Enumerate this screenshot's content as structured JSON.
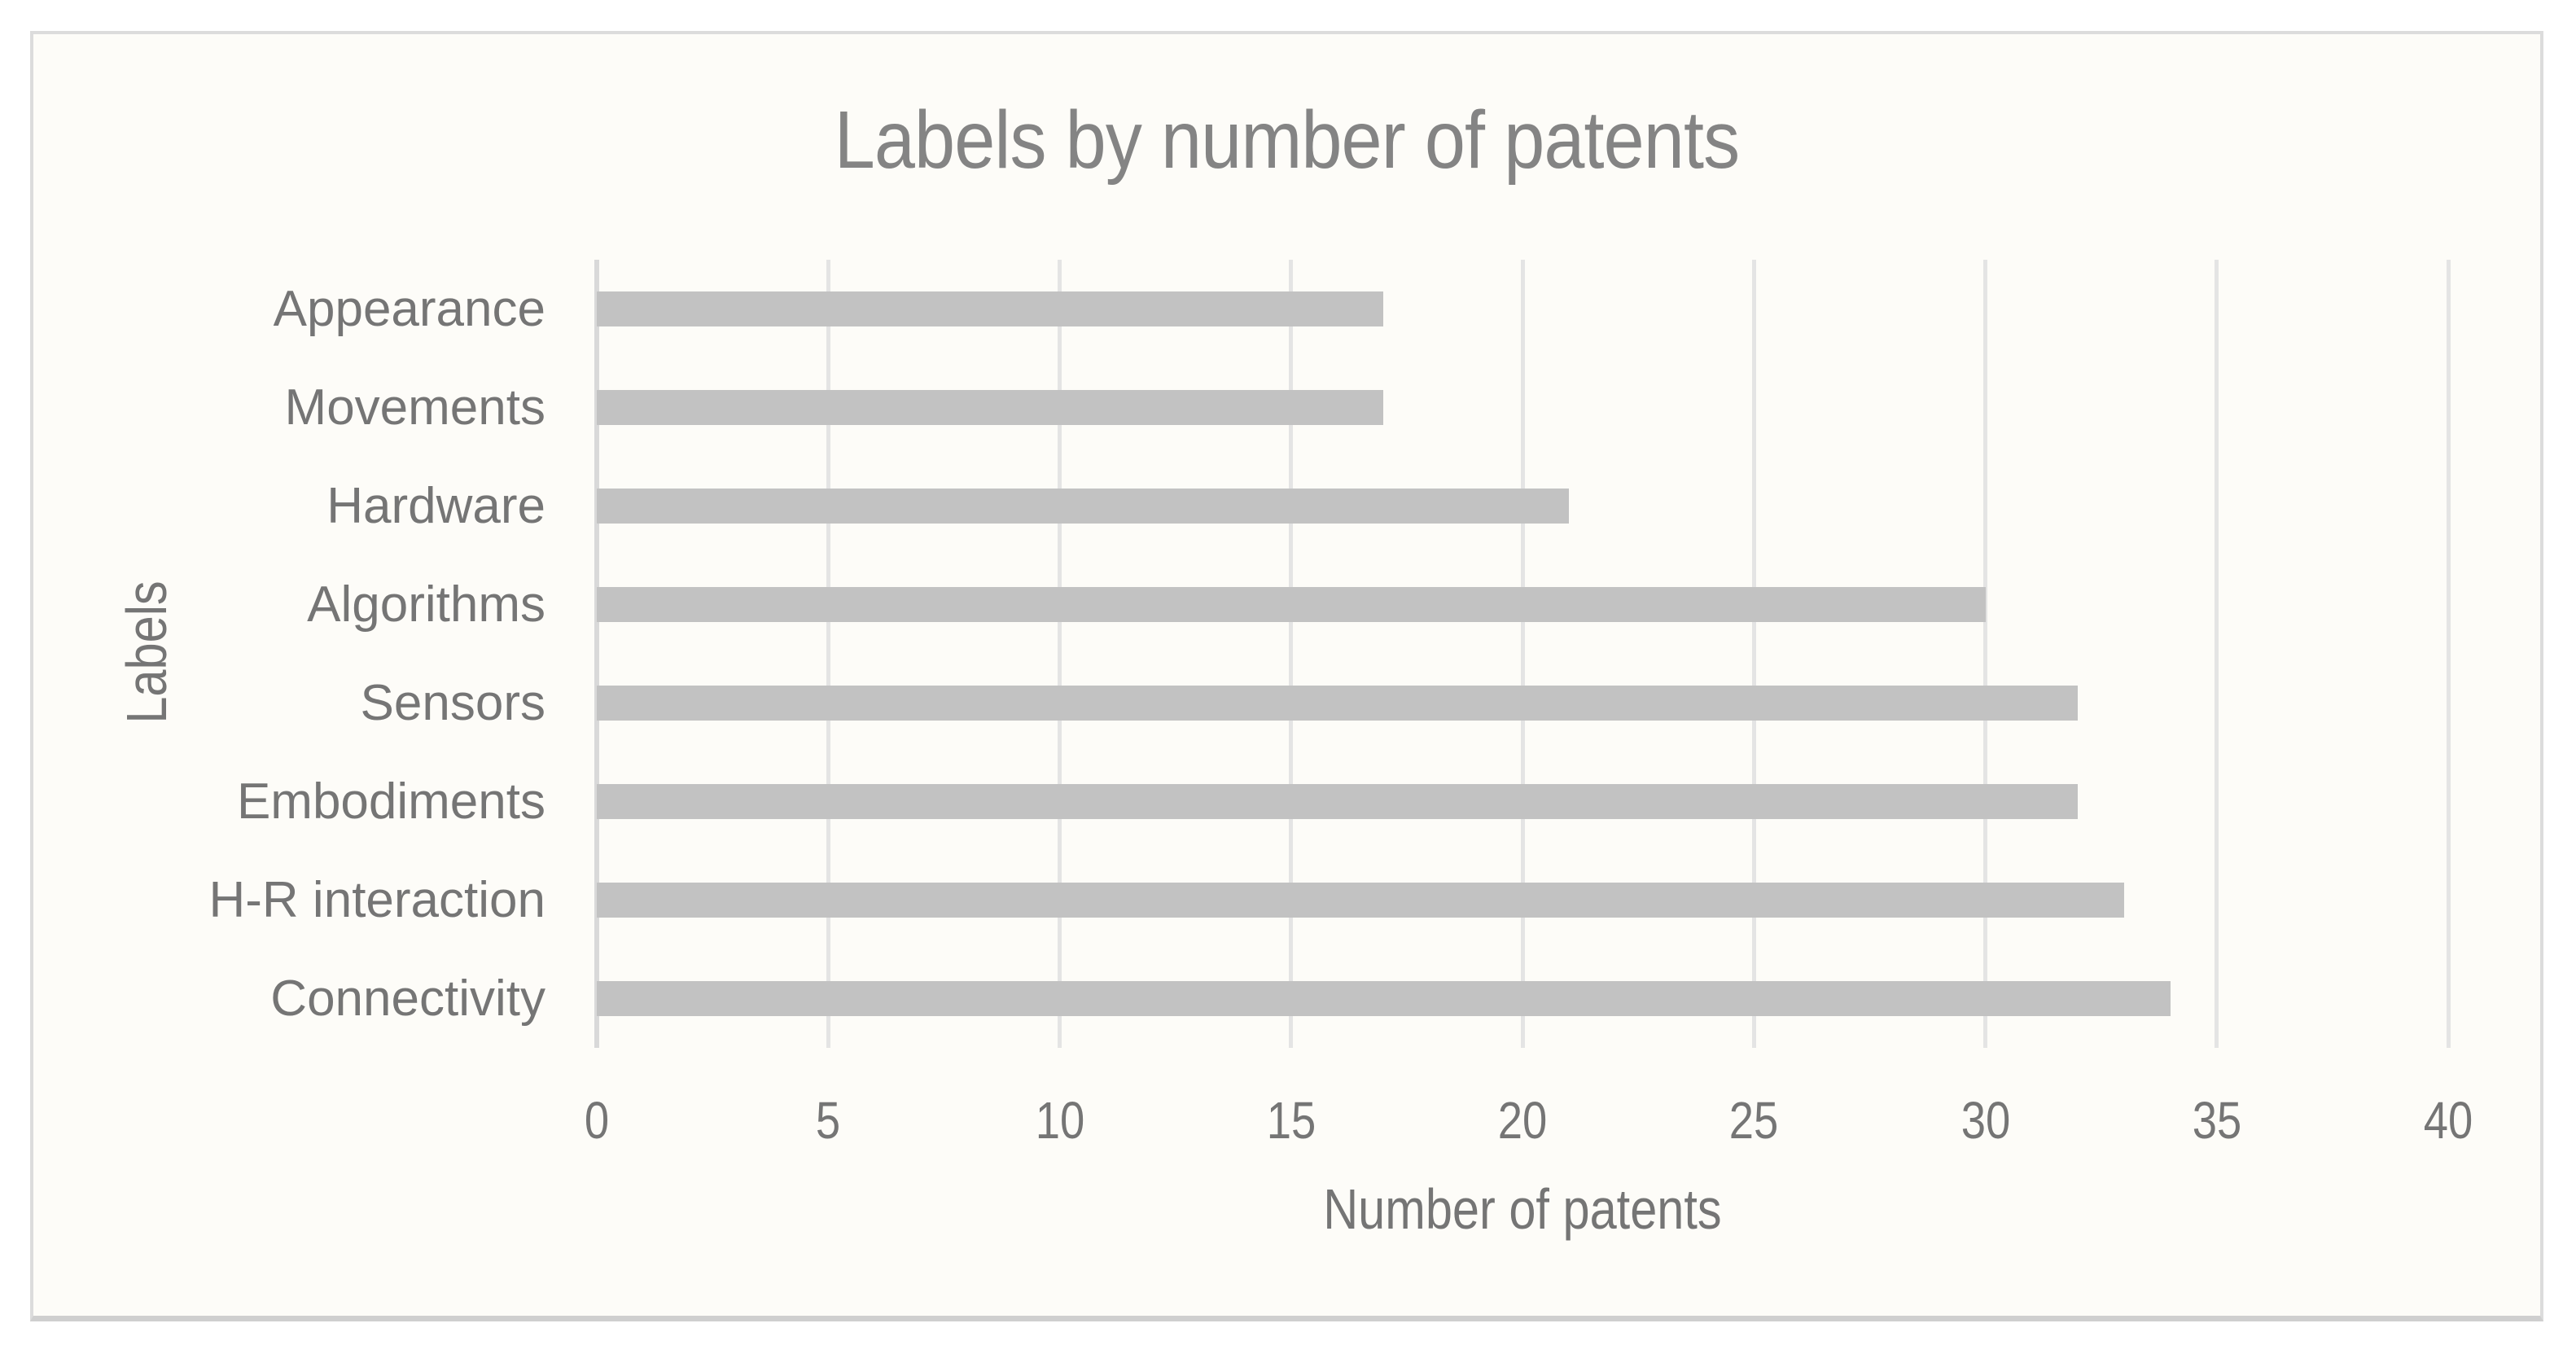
{
  "chart_data": {
    "type": "bar",
    "orientation": "horizontal",
    "title": "Labels by number of patents",
    "xlabel": "Number of patents",
    "ylabel": "Labels",
    "categories": [
      "Appearance",
      "Movements",
      "Hardware",
      "Algorithms",
      "Sensors",
      "Embodiments",
      "H-R interaction",
      "Connectivity"
    ],
    "values": [
      17,
      17,
      21,
      30,
      32,
      32,
      33,
      34
    ],
    "xlim": [
      0,
      40
    ],
    "xticks": [
      0,
      5,
      10,
      15,
      20,
      25,
      30,
      35,
      40
    ],
    "grid": "vertical-only",
    "legend_position": "none",
    "colors": {
      "bar": "#c2c2c2",
      "gridline": "#e4e4e4",
      "zero_axis_line": "#d9d9d9",
      "label_text": "#757575",
      "title_text": "#848484",
      "frame_border": "#dcdcdc",
      "plot_background": "#fdfcf8",
      "page_background": "#ffffff"
    }
  }
}
